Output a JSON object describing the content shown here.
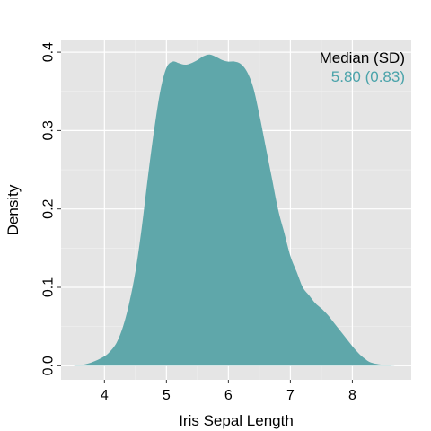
{
  "chart_data": {
    "type": "area",
    "xlabel": "Iris Sepal Length",
    "ylabel": "Density",
    "xlim": [
      3.3,
      8.95
    ],
    "ylim": [
      -0.018,
      0.415
    ],
    "x_ticks": [
      4,
      5,
      6,
      7,
      8
    ],
    "y_ticks": [
      0.0,
      0.1,
      0.2,
      0.3,
      0.4
    ],
    "x_tick_labels": [
      "4",
      "5",
      "6",
      "7",
      "8"
    ],
    "y_tick_labels": [
      "0.0",
      "0.1",
      "0.2",
      "0.3",
      "0.4"
    ],
    "grid": true,
    "legend": "none",
    "series": [
      {
        "color": "#5fa7aa",
        "x": [
          3.5,
          3.7,
          3.85,
          4.0,
          4.1,
          4.2,
          4.3,
          4.4,
          4.5,
          4.6,
          4.7,
          4.8,
          4.9,
          5.0,
          5.1,
          5.2,
          5.3,
          5.4,
          5.5,
          5.6,
          5.7,
          5.8,
          5.9,
          6.0,
          6.1,
          6.2,
          6.3,
          6.4,
          6.5,
          6.6,
          6.7,
          6.8,
          6.9,
          7.0,
          7.1,
          7.2,
          7.3,
          7.4,
          7.5,
          7.6,
          7.7,
          7.8,
          7.9,
          8.0,
          8.1,
          8.2,
          8.3,
          8.5,
          8.7
        ],
        "y": [
          0.0,
          0.002,
          0.006,
          0.012,
          0.019,
          0.03,
          0.05,
          0.08,
          0.12,
          0.175,
          0.24,
          0.3,
          0.35,
          0.38,
          0.388,
          0.386,
          0.384,
          0.386,
          0.39,
          0.395,
          0.397,
          0.394,
          0.39,
          0.388,
          0.388,
          0.385,
          0.375,
          0.355,
          0.32,
          0.28,
          0.24,
          0.2,
          0.17,
          0.14,
          0.12,
          0.1,
          0.09,
          0.08,
          0.073,
          0.065,
          0.055,
          0.045,
          0.035,
          0.025,
          0.016,
          0.009,
          0.004,
          0.001,
          0.0
        ]
      }
    ],
    "annotation": {
      "title": "Median (SD)",
      "value": "5.80 (0.83)",
      "value_color": "#4aa3aa"
    }
  }
}
